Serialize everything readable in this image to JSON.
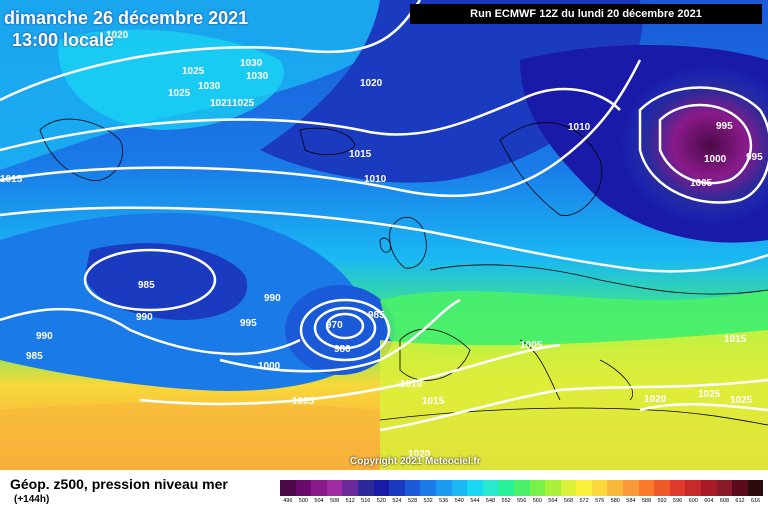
{
  "header": {
    "date": "dimanche 26 décembre 2021",
    "time": "13:00 locale",
    "run": "Run ECMWF 12Z du lundi 20 décembre 2021"
  },
  "copyright": "Copyright 2021 Meteociel.fr",
  "footer": {
    "title": "Géop. z500, pression niveau mer",
    "subtitle": "(+144h)"
  },
  "scale": {
    "values": [
      "496",
      "500",
      "504",
      "508",
      "512",
      "516",
      "520",
      "524",
      "528",
      "532",
      "536",
      "540",
      "544",
      "548",
      "552",
      "556",
      "560",
      "564",
      "568",
      "572",
      "576",
      "580",
      "584",
      "588",
      "592",
      "596",
      "600",
      "604",
      "608",
      "612",
      "616"
    ],
    "colors": [
      "#4a0a48",
      "#6a0a6a",
      "#8a1a8a",
      "#a02aa0",
      "#6a2a9a",
      "#2a2a9a",
      "#1a1aa8",
      "#1a3ac0",
      "#1a5ad8",
      "#1a7ae8",
      "#1a9af0",
      "#1ab8f4",
      "#1ad8f4",
      "#2ae8d0",
      "#2af09a",
      "#4af06a",
      "#7af04a",
      "#aaf03a",
      "#daf03a",
      "#f8f03a",
      "#f8d83a",
      "#f8b83a",
      "#f89a3a",
      "#f87a2a",
      "#f05a2a",
      "#e03a2a",
      "#c82a2a",
      "#a81a2a",
      "#881a2a",
      "#5a0a1a",
      "#2a0a0a"
    ]
  },
  "pressure_labels": [
    "1020",
    "1025",
    "1030",
    "1030",
    "1030",
    "1025",
    "1030",
    "1021",
    "1025",
    "1020",
    "1015",
    "1010",
    "1015",
    "1010",
    "995",
    "1000",
    "995",
    "1005",
    "985",
    "990",
    "990",
    "995",
    "970",
    "985",
    "980",
    "990",
    "985",
    "1000",
    "1005",
    "1005",
    "1010",
    "1015",
    "1015",
    "1020",
    "1025",
    "1025",
    "1020"
  ]
}
